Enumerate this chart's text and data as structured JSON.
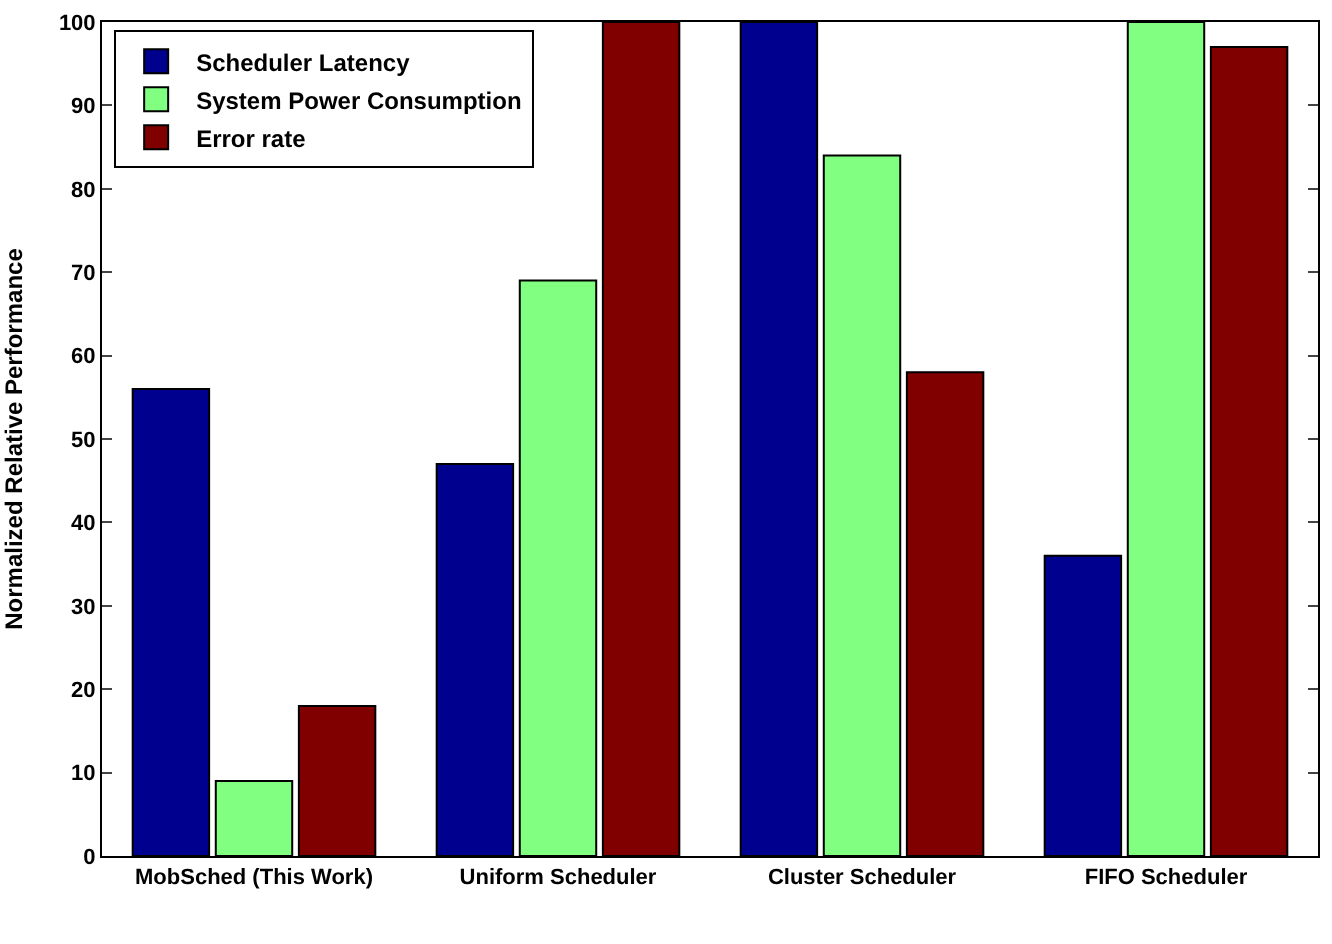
{
  "chart_data": {
    "type": "bar",
    "ylabel": "Normalized Relative Performance",
    "categories": [
      "MobSched (This Work)",
      "Uniform Scheduler",
      "Cluster Scheduler",
      "FIFO Scheduler"
    ],
    "series": [
      {
        "name": "Scheduler Latency",
        "color": "#00008f",
        "values": [
          56,
          47,
          100,
          36
        ]
      },
      {
        "name": "System Power Consumption",
        "color": "#80ff80",
        "values": [
          9,
          69,
          84,
          100
        ]
      },
      {
        "name": "Error rate",
        "color": "#800000",
        "values": [
          18,
          100,
          58,
          97
        ]
      }
    ],
    "ylim": [
      0,
      100
    ],
    "yticks": [
      0,
      10,
      20,
      30,
      40,
      50,
      60,
      70,
      80,
      90,
      100
    ],
    "legend": "top left"
  }
}
